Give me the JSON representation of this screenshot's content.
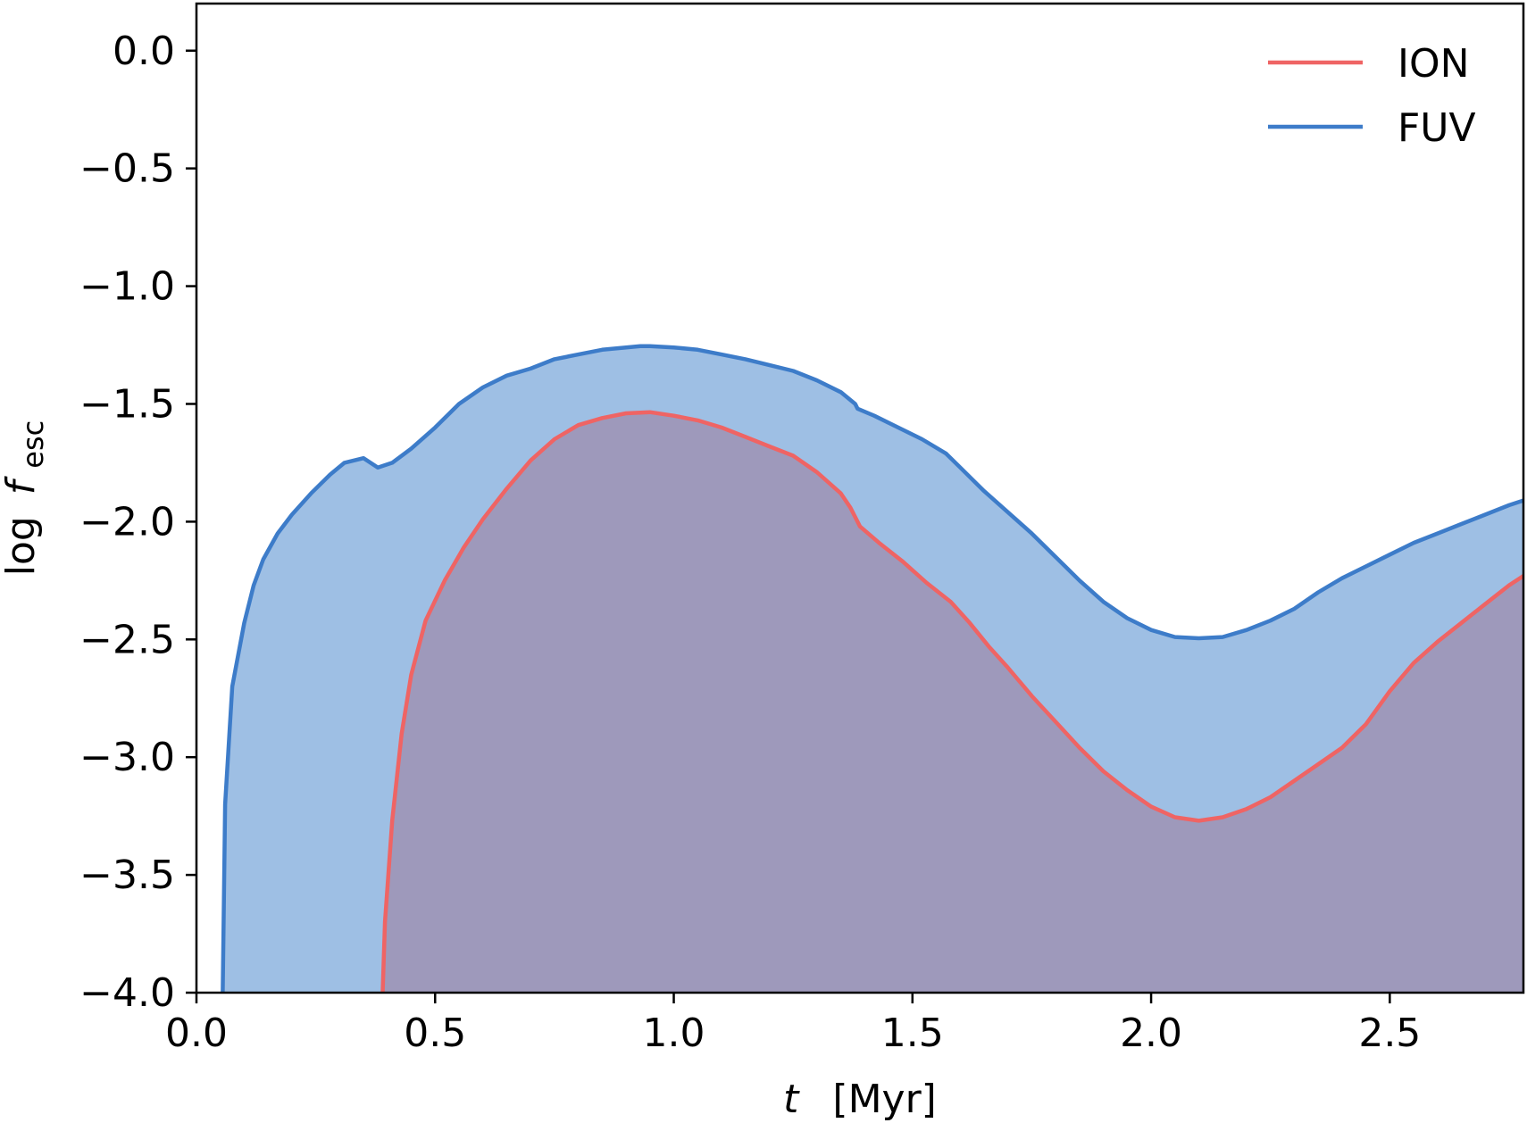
{
  "chart_data": {
    "type": "area",
    "xlabel": {
      "var": "t",
      "unit": "[Myr]"
    },
    "ylabel": {
      "prefix": "log",
      "var": "f",
      "sub": "esc"
    },
    "xlim": [
      0.0,
      2.78
    ],
    "ylim": [
      -4.0,
      0.2
    ],
    "x_ticks": [
      {
        "value": 0.0,
        "label": "0.0"
      },
      {
        "value": 0.5,
        "label": "0.5"
      },
      {
        "value": 1.0,
        "label": "1.0"
      },
      {
        "value": 1.5,
        "label": "1.5"
      },
      {
        "value": 2.0,
        "label": "2.0"
      },
      {
        "value": 2.5,
        "label": "2.5"
      }
    ],
    "y_ticks": [
      {
        "value": 0.0,
        "label": "0.0"
      },
      {
        "value": -0.5,
        "label": "−0.5"
      },
      {
        "value": -1.0,
        "label": "−1.0"
      },
      {
        "value": -1.5,
        "label": "−1.5"
      },
      {
        "value": -2.0,
        "label": "−2.0"
      },
      {
        "value": -2.5,
        "label": "−2.5"
      },
      {
        "value": -3.0,
        "label": "−3.0"
      },
      {
        "value": -3.5,
        "label": "−3.5"
      },
      {
        "value": -4.0,
        "label": "−4.0"
      }
    ],
    "grid": false,
    "legend": {
      "placement": "top-right"
    },
    "series": [
      {
        "name": "FUV",
        "line_color": "#3d7cc9",
        "fill_color": "#9ebfe4",
        "points": [
          [
            0.055,
            -4.0
          ],
          [
            0.06,
            -3.2
          ],
          [
            0.075,
            -2.7
          ],
          [
            0.1,
            -2.43
          ],
          [
            0.12,
            -2.27
          ],
          [
            0.14,
            -2.16
          ],
          [
            0.17,
            -2.05
          ],
          [
            0.2,
            -1.97
          ],
          [
            0.24,
            -1.88
          ],
          [
            0.28,
            -1.8
          ],
          [
            0.31,
            -1.75
          ],
          [
            0.35,
            -1.73
          ],
          [
            0.38,
            -1.77
          ],
          [
            0.41,
            -1.75
          ],
          [
            0.45,
            -1.69
          ],
          [
            0.5,
            -1.6
          ],
          [
            0.55,
            -1.5
          ],
          [
            0.6,
            -1.43
          ],
          [
            0.65,
            -1.38
          ],
          [
            0.7,
            -1.35
          ],
          [
            0.75,
            -1.31
          ],
          [
            0.8,
            -1.29
          ],
          [
            0.85,
            -1.27
          ],
          [
            0.9,
            -1.26
          ],
          [
            0.93,
            -1.255
          ],
          [
            0.95,
            -1.255
          ],
          [
            1.0,
            -1.26
          ],
          [
            1.05,
            -1.27
          ],
          [
            1.1,
            -1.29
          ],
          [
            1.15,
            -1.31
          ],
          [
            1.2,
            -1.335
          ],
          [
            1.25,
            -1.36
          ],
          [
            1.3,
            -1.4
          ],
          [
            1.35,
            -1.45
          ],
          [
            1.38,
            -1.5
          ],
          [
            1.385,
            -1.52
          ],
          [
            1.42,
            -1.55
          ],
          [
            1.47,
            -1.6
          ],
          [
            1.52,
            -1.65
          ],
          [
            1.57,
            -1.71
          ],
          [
            1.6,
            -1.77
          ],
          [
            1.65,
            -1.87
          ],
          [
            1.7,
            -1.96
          ],
          [
            1.75,
            -2.05
          ],
          [
            1.8,
            -2.15
          ],
          [
            1.85,
            -2.25
          ],
          [
            1.9,
            -2.34
          ],
          [
            1.95,
            -2.41
          ],
          [
            2.0,
            -2.46
          ],
          [
            2.05,
            -2.49
          ],
          [
            2.1,
            -2.495
          ],
          [
            2.15,
            -2.49
          ],
          [
            2.2,
            -2.46
          ],
          [
            2.25,
            -2.42
          ],
          [
            2.3,
            -2.37
          ],
          [
            2.35,
            -2.3
          ],
          [
            2.4,
            -2.24
          ],
          [
            2.45,
            -2.19
          ],
          [
            2.5,
            -2.14
          ],
          [
            2.55,
            -2.09
          ],
          [
            2.6,
            -2.05
          ],
          [
            2.65,
            -2.01
          ],
          [
            2.7,
            -1.97
          ],
          [
            2.75,
            -1.93
          ],
          [
            2.78,
            -1.91
          ]
        ]
      },
      {
        "name": "ION",
        "line_color": "#ef6464",
        "fill_color": "#9e99bb",
        "points": [
          [
            0.39,
            -4.0
          ],
          [
            0.395,
            -3.7
          ],
          [
            0.41,
            -3.27
          ],
          [
            0.43,
            -2.9
          ],
          [
            0.45,
            -2.65
          ],
          [
            0.48,
            -2.42
          ],
          [
            0.52,
            -2.25
          ],
          [
            0.56,
            -2.11
          ],
          [
            0.6,
            -1.99
          ],
          [
            0.65,
            -1.86
          ],
          [
            0.7,
            -1.74
          ],
          [
            0.75,
            -1.65
          ],
          [
            0.8,
            -1.59
          ],
          [
            0.85,
            -1.56
          ],
          [
            0.9,
            -1.54
          ],
          [
            0.95,
            -1.535
          ],
          [
            1.0,
            -1.55
          ],
          [
            1.05,
            -1.57
          ],
          [
            1.1,
            -1.6
          ],
          [
            1.15,
            -1.64
          ],
          [
            1.2,
            -1.68
          ],
          [
            1.25,
            -1.72
          ],
          [
            1.3,
            -1.79
          ],
          [
            1.35,
            -1.88
          ],
          [
            1.37,
            -1.94
          ],
          [
            1.385,
            -2.0
          ],
          [
            1.39,
            -2.02
          ],
          [
            1.43,
            -2.09
          ],
          [
            1.48,
            -2.17
          ],
          [
            1.53,
            -2.26
          ],
          [
            1.58,
            -2.34
          ],
          [
            1.62,
            -2.43
          ],
          [
            1.66,
            -2.53
          ],
          [
            1.7,
            -2.62
          ],
          [
            1.75,
            -2.74
          ],
          [
            1.8,
            -2.85
          ],
          [
            1.85,
            -2.96
          ],
          [
            1.9,
            -3.06
          ],
          [
            1.95,
            -3.14
          ],
          [
            2.0,
            -3.21
          ],
          [
            2.05,
            -3.255
          ],
          [
            2.1,
            -3.27
          ],
          [
            2.15,
            -3.255
          ],
          [
            2.2,
            -3.22
          ],
          [
            2.25,
            -3.17
          ],
          [
            2.3,
            -3.1
          ],
          [
            2.35,
            -3.03
          ],
          [
            2.4,
            -2.96
          ],
          [
            2.45,
            -2.86
          ],
          [
            2.5,
            -2.72
          ],
          [
            2.55,
            -2.6
          ],
          [
            2.6,
            -2.51
          ],
          [
            2.65,
            -2.43
          ],
          [
            2.7,
            -2.35
          ],
          [
            2.75,
            -2.27
          ],
          [
            2.78,
            -2.23
          ]
        ]
      }
    ]
  }
}
